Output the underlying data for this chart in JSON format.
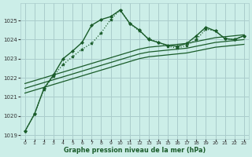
{
  "background_color": "#cceee8",
  "grid_color": "#aacccc",
  "line_color": "#1a5c2a",
  "title": "Graphe pression niveau de la mer (hPa)",
  "ylabel_values": [
    1019,
    1020,
    1021,
    1022,
    1023,
    1024,
    1025
  ],
  "xlim": [
    -0.5,
    23.5
  ],
  "ylim": [
    1018.8,
    1025.9
  ],
  "lines": [
    {
      "x": [
        0,
        1,
        2,
        3,
        4,
        5,
        6,
        7,
        8,
        9,
        10,
        11,
        12,
        13,
        14,
        15,
        16,
        17,
        18,
        19,
        20,
        21,
        22,
        23
      ],
      "y": [
        1019.2,
        1020.1,
        1021.45,
        1022.15,
        1023.0,
        1023.4,
        1023.85,
        1024.75,
        1025.05,
        1025.2,
        1025.55,
        1024.85,
        1024.5,
        1024.0,
        1023.85,
        1023.7,
        1023.65,
        1023.8,
        1024.2,
        1024.65,
        1024.45,
        1024.05,
        1024.0,
        1024.2
      ],
      "style": "-",
      "marker": "D",
      "markersize": 2.0,
      "linewidth": 1.0
    },
    {
      "x": [
        0,
        1,
        2,
        3,
        4,
        5,
        6,
        7,
        8,
        9,
        10,
        11,
        12,
        13,
        14,
        15,
        16,
        17,
        18,
        19,
        20,
        21,
        22,
        23
      ],
      "y": [
        1019.2,
        1020.1,
        1021.4,
        1022.1,
        1022.7,
        1023.1,
        1023.5,
        1023.8,
        1024.35,
        1025.05,
        1025.55,
        1024.85,
        1024.45,
        1024.05,
        1023.85,
        1023.65,
        1023.55,
        1023.7,
        1024.0,
        1024.55,
        1024.45,
        1024.05,
        1024.0,
        1024.2
      ],
      "style": ":",
      "marker": "*",
      "markersize": 3.0,
      "linewidth": 0.9
    },
    {
      "x": [
        0,
        1,
        2,
        3,
        4,
        5,
        6,
        7,
        8,
        9,
        10,
        11,
        12,
        13,
        14,
        15,
        16,
        17,
        18,
        19,
        20,
        21,
        22,
        23
      ],
      "y": [
        1021.7,
        1021.85,
        1022.0,
        1022.15,
        1022.3,
        1022.45,
        1022.6,
        1022.75,
        1022.9,
        1023.05,
        1023.2,
        1023.35,
        1023.5,
        1023.6,
        1023.65,
        1023.7,
        1023.75,
        1023.8,
        1023.9,
        1024.0,
        1024.1,
        1024.15,
        1024.2,
        1024.25
      ],
      "style": "-",
      "marker": null,
      "markersize": 0,
      "linewidth": 0.9
    },
    {
      "x": [
        0,
        1,
        2,
        3,
        4,
        5,
        6,
        7,
        8,
        9,
        10,
        11,
        12,
        13,
        14,
        15,
        16,
        17,
        18,
        19,
        20,
        21,
        22,
        23
      ],
      "y": [
        1021.45,
        1021.6,
        1021.75,
        1021.9,
        1022.05,
        1022.2,
        1022.35,
        1022.5,
        1022.65,
        1022.8,
        1022.95,
        1023.1,
        1023.25,
        1023.35,
        1023.4,
        1023.45,
        1023.5,
        1023.55,
        1023.65,
        1023.75,
        1023.85,
        1023.9,
        1023.95,
        1024.0
      ],
      "style": "-",
      "marker": null,
      "markersize": 0,
      "linewidth": 0.9
    },
    {
      "x": [
        0,
        1,
        2,
        3,
        4,
        5,
        6,
        7,
        8,
        9,
        10,
        11,
        12,
        13,
        14,
        15,
        16,
        17,
        18,
        19,
        20,
        21,
        22,
        23
      ],
      "y": [
        1021.2,
        1021.35,
        1021.5,
        1021.65,
        1021.8,
        1021.95,
        1022.1,
        1022.25,
        1022.4,
        1022.55,
        1022.7,
        1022.85,
        1023.0,
        1023.1,
        1023.15,
        1023.2,
        1023.25,
        1023.3,
        1023.4,
        1023.5,
        1023.6,
        1023.65,
        1023.7,
        1023.75
      ],
      "style": "-",
      "marker": null,
      "markersize": 0,
      "linewidth": 0.9
    }
  ],
  "xtick_labels": [
    "0",
    "1",
    "2",
    "3",
    "4",
    "5",
    "6",
    "7",
    "8",
    "9",
    "10",
    "11",
    "12",
    "13",
    "14",
    "15",
    "16",
    "17",
    "18",
    "19",
    "20",
    "21",
    "22",
    "23"
  ],
  "xtick_fontsize": 4.5,
  "ytick_fontsize": 5.0,
  "xlabel_fontsize": 5.8
}
